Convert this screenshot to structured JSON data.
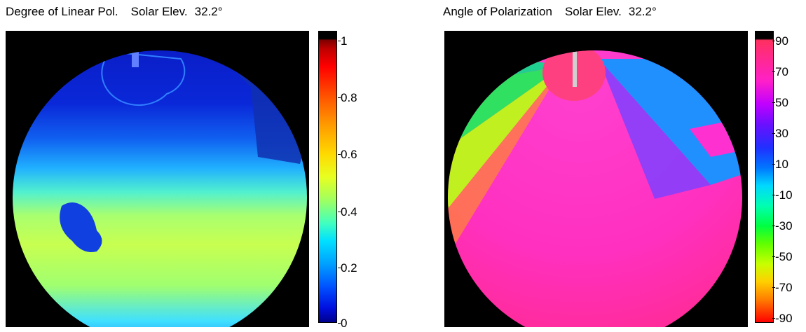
{
  "left_panel": {
    "title": "Degree of Linear Pol.",
    "subtitle_label": "Solar Elev.",
    "subtitle_value": "32.2°",
    "colorbar_ticks": [
      "1",
      "0.8",
      "0.6",
      "0.4",
      "0.2",
      "0"
    ],
    "colormap": "jet"
  },
  "right_panel": {
    "title": "Angle of Polarization",
    "subtitle_label": "Solar Elev.",
    "subtitle_value": "32.2°",
    "colorbar_ticks": [
      "90",
      "70",
      "50",
      "30",
      "10",
      "-10",
      "-30",
      "-50",
      "-70",
      "-90"
    ],
    "colormap": "hsv"
  },
  "colors": {
    "background": "#ffffff",
    "image_background": "#000000"
  }
}
